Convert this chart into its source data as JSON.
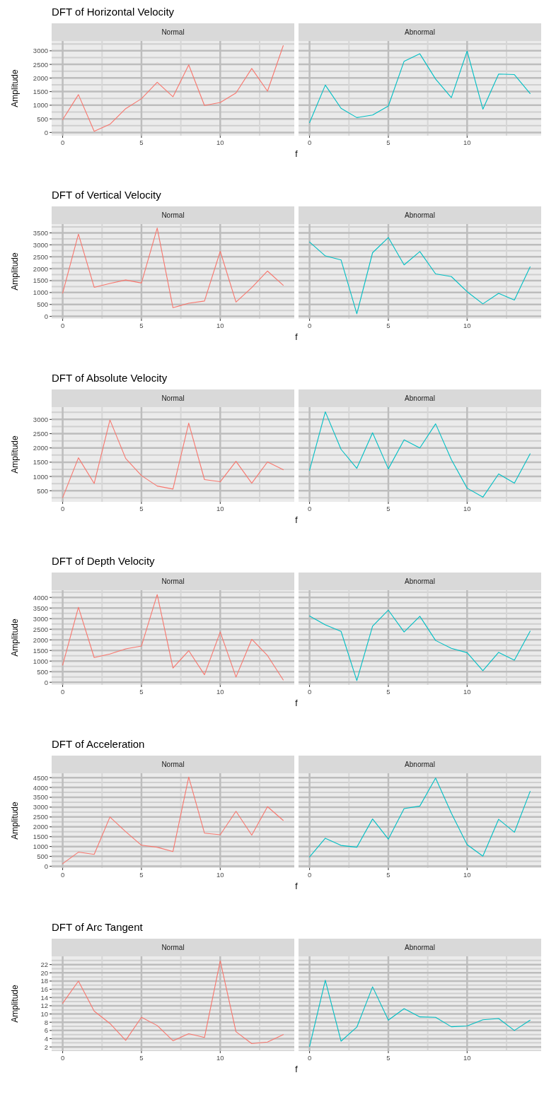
{
  "chart_data": [
    {
      "type": "line",
      "title": "DFT of Horizontal Velocity",
      "subtitle": "Normal",
      "ylabel": "Amplitude",
      "xlabel": "f",
      "x": [
        0,
        1,
        2,
        3,
        4,
        5,
        6,
        7,
        8,
        9,
        10,
        11,
        12,
        13,
        14
      ],
      "xlim": [
        -0.7,
        14.7
      ],
      "xticks": [
        0,
        5,
        10
      ],
      "ylim": [
        -120,
        3360
      ],
      "yticks": [
        0,
        500,
        1000,
        1500,
        2000,
        2500,
        3000
      ],
      "grid": true,
      "series": [
        {
          "color": "#f8766d",
          "values": [
            470,
            1390,
            40,
            300,
            875,
            1240,
            1845,
            1310,
            2485,
            990,
            1100,
            1450,
            2350,
            1515,
            3190
          ]
        }
      ]
    },
    {
      "type": "line",
      "subtitle": "Abnormal",
      "x": [
        0,
        1,
        2,
        3,
        4,
        5,
        6,
        7,
        8,
        9,
        10,
        11,
        12,
        13,
        14
      ],
      "xlim": [
        -0.7,
        14.7
      ],
      "xticks": [
        0,
        5,
        10
      ],
      "ylim": [
        -120,
        3360
      ],
      "yticks": [
        0,
        500,
        1000,
        1500,
        2000,
        2500,
        3000
      ],
      "grid": true,
      "tick_labels": "x",
      "series": [
        {
          "color": "#00bfc4",
          "values": [
            360,
            1740,
            885,
            545,
            640,
            970,
            2615,
            2890,
            1960,
            1280,
            2990,
            855,
            2145,
            2125,
            1430
          ]
        }
      ]
    },
    {
      "type": "line",
      "title": "DFT of Vertical Velocity",
      "subtitle": "Normal",
      "ylabel": "Amplitude",
      "xlabel": "f",
      "x": [
        0,
        1,
        2,
        3,
        4,
        5,
        6,
        7,
        8,
        9,
        10,
        11,
        12,
        13,
        14
      ],
      "xlim": [
        -0.7,
        14.7
      ],
      "xticks": [
        0,
        5,
        10
      ],
      "ylim": [
        -100,
        3870
      ],
      "yticks": [
        0,
        500,
        1000,
        1500,
        2000,
        2500,
        3000,
        3500
      ],
      "grid": true,
      "series": [
        {
          "color": "#f8766d",
          "values": [
            975,
            3450,
            1220,
            1380,
            1525,
            1400,
            3705,
            365,
            550,
            645,
            2730,
            600,
            1210,
            1900,
            1305
          ]
        }
      ]
    },
    {
      "type": "line",
      "subtitle": "Abnormal",
      "x": [
        0,
        1,
        2,
        3,
        4,
        5,
        6,
        7,
        8,
        9,
        10,
        11,
        12,
        13,
        14
      ],
      "xlim": [
        -0.7,
        14.7
      ],
      "xticks": [
        0,
        5,
        10
      ],
      "ylim": [
        -100,
        3870
      ],
      "yticks": [
        0,
        500,
        1000,
        1500,
        2000,
        2500,
        3000,
        3500
      ],
      "grid": true,
      "tick_labels": "x",
      "series": [
        {
          "color": "#00bfc4",
          "values": [
            3120,
            2535,
            2365,
            110,
            2670,
            3305,
            2160,
            2720,
            1780,
            1670,
            1035,
            525,
            965,
            685,
            2075
          ]
        }
      ]
    },
    {
      "type": "line",
      "title": "DFT of Absolute Velocity",
      "subtitle": "Normal",
      "ylabel": "Amplitude",
      "xlabel": "f",
      "x": [
        0,
        1,
        2,
        3,
        4,
        5,
        6,
        7,
        8,
        9,
        10,
        11,
        12,
        13,
        14
      ],
      "xlim": [
        -0.7,
        14.7
      ],
      "xticks": [
        0,
        5,
        10
      ],
      "ylim": [
        110,
        3430
      ],
      "yticks": [
        500,
        1000,
        1500,
        2000,
        2500,
        3000
      ],
      "grid": true,
      "series": [
        {
          "color": "#f8766d",
          "values": [
            255,
            1655,
            755,
            2980,
            1630,
            1030,
            665,
            560,
            2870,
            890,
            815,
            1530,
            765,
            1510,
            1235
          ]
        }
      ]
    },
    {
      "type": "line",
      "subtitle": "Abnormal",
      "x": [
        0,
        1,
        2,
        3,
        4,
        5,
        6,
        7,
        8,
        9,
        10,
        11,
        12,
        13,
        14
      ],
      "xlim": [
        -0.7,
        14.7
      ],
      "xticks": [
        0,
        5,
        10
      ],
      "ylim": [
        110,
        3430
      ],
      "yticks": [
        500,
        1000,
        1500,
        2000,
        2500,
        3000
      ],
      "grid": true,
      "tick_labels": "x",
      "series": [
        {
          "color": "#00bfc4",
          "values": [
            1215,
            3265,
            1950,
            1285,
            2530,
            1265,
            2285,
            2000,
            2845,
            1590,
            590,
            275,
            1090,
            765,
            1795
          ]
        }
      ]
    },
    {
      "type": "line",
      "title": "DFT of Depth Velocity",
      "subtitle": "Normal",
      "ylabel": "Amplitude",
      "xlabel": "f",
      "x": [
        0,
        1,
        2,
        3,
        4,
        5,
        6,
        7,
        8,
        9,
        10,
        11,
        12,
        13,
        14
      ],
      "xlim": [
        -0.7,
        14.7
      ],
      "xticks": [
        0,
        5,
        10
      ],
      "ylim": [
        -125,
        4340
      ],
      "yticks": [
        0,
        500,
        1000,
        1500,
        2000,
        2500,
        3000,
        3500,
        4000
      ],
      "grid": true,
      "series": [
        {
          "color": "#f8766d",
          "values": [
            810,
            3535,
            1165,
            1330,
            1575,
            1710,
            4135,
            670,
            1490,
            355,
            2370,
            245,
            2025,
            1260,
            110
          ]
        }
      ]
    },
    {
      "type": "line",
      "subtitle": "Abnormal",
      "x": [
        0,
        1,
        2,
        3,
        4,
        5,
        6,
        7,
        8,
        9,
        10,
        11,
        12,
        13,
        14
      ],
      "xlim": [
        -0.7,
        14.7
      ],
      "xticks": [
        0,
        5,
        10
      ],
      "ylim": [
        -125,
        4340
      ],
      "yticks": [
        0,
        500,
        1000,
        1500,
        2000,
        2500,
        3000,
        3500,
        4000
      ],
      "grid": true,
      "tick_labels": "x",
      "series": [
        {
          "color": "#00bfc4",
          "values": [
            3125,
            2710,
            2400,
            80,
            2645,
            3400,
            2370,
            3110,
            1970,
            1600,
            1395,
            545,
            1410,
            1040,
            2410
          ]
        }
      ]
    },
    {
      "type": "line",
      "title": "DFT of Acceleration",
      "subtitle": "Normal",
      "ylabel": "Amplitude",
      "xlabel": "f",
      "x": [
        0,
        1,
        2,
        3,
        4,
        5,
        6,
        7,
        8,
        9,
        10,
        11,
        12,
        13,
        14
      ],
      "xlim": [
        -0.7,
        14.7
      ],
      "xticks": [
        0,
        5,
        10
      ],
      "ylim": [
        -90,
        4720
      ],
      "yticks": [
        0,
        500,
        1000,
        1500,
        2000,
        2500,
        3000,
        3500,
        4000,
        4500
      ],
      "grid": true,
      "series": [
        {
          "color": "#f8766d",
          "values": [
            130,
            715,
            600,
            2500,
            1755,
            1065,
            965,
            745,
            4530,
            1680,
            1595,
            2790,
            1580,
            3025,
            2325
          ]
        }
      ]
    },
    {
      "type": "line",
      "subtitle": "Abnormal",
      "x": [
        0,
        1,
        2,
        3,
        4,
        5,
        6,
        7,
        8,
        9,
        10,
        11,
        12,
        13,
        14
      ],
      "xlim": [
        -0.7,
        14.7
      ],
      "xticks": [
        0,
        5,
        10
      ],
      "ylim": [
        -90,
        4720
      ],
      "yticks": [
        0,
        500,
        1000,
        1500,
        2000,
        2500,
        3000,
        3500,
        4000,
        4500
      ],
      "grid": true,
      "tick_labels": "x",
      "series": [
        {
          "color": "#00bfc4",
          "values": [
            470,
            1420,
            1055,
            965,
            2400,
            1375,
            2925,
            3055,
            4475,
            2690,
            1095,
            510,
            2385,
            1725,
            3800
          ]
        }
      ]
    },
    {
      "type": "line",
      "title": "DFT of Arc Tangent",
      "subtitle": "Normal",
      "ylabel": "Amplitude",
      "xlabel": "f",
      "x": [
        0,
        1,
        2,
        3,
        4,
        5,
        6,
        7,
        8,
        9,
        10,
        11,
        12,
        13,
        14
      ],
      "xlim": [
        -0.7,
        14.7
      ],
      "xticks": [
        0,
        5,
        10
      ],
      "ylim": [
        1,
        24
      ],
      "yticks": [
        2,
        4,
        6,
        8,
        10,
        12,
        14,
        16,
        18,
        20,
        22
      ],
      "grid": true,
      "series": [
        {
          "color": "#f8766d",
          "values": [
            12.6,
            18.0,
            10.7,
            7.7,
            3.6,
            9.2,
            7.2,
            3.5,
            5.2,
            4.3,
            22.9,
            5.7,
            2.8,
            3.2,
            5.0
          ]
        }
      ]
    },
    {
      "type": "line",
      "subtitle": "Abnormal",
      "x": [
        0,
        1,
        2,
        3,
        4,
        5,
        6,
        7,
        8,
        9,
        10,
        11,
        12,
        13,
        14
      ],
      "xlim": [
        -0.7,
        14.7
      ],
      "xticks": [
        0,
        5,
        10
      ],
      "ylim": [
        1,
        24
      ],
      "yticks": [
        2,
        4,
        6,
        8,
        10,
        12,
        14,
        16,
        18,
        20,
        22
      ],
      "grid": true,
      "tick_labels": "x",
      "series": [
        {
          "color": "#00bfc4",
          "values": [
            2.1,
            18.2,
            3.4,
            6.8,
            16.6,
            8.5,
            11.3,
            9.3,
            9.2,
            6.9,
            7.1,
            8.6,
            8.9,
            6.0,
            8.5
          ]
        }
      ]
    }
  ]
}
